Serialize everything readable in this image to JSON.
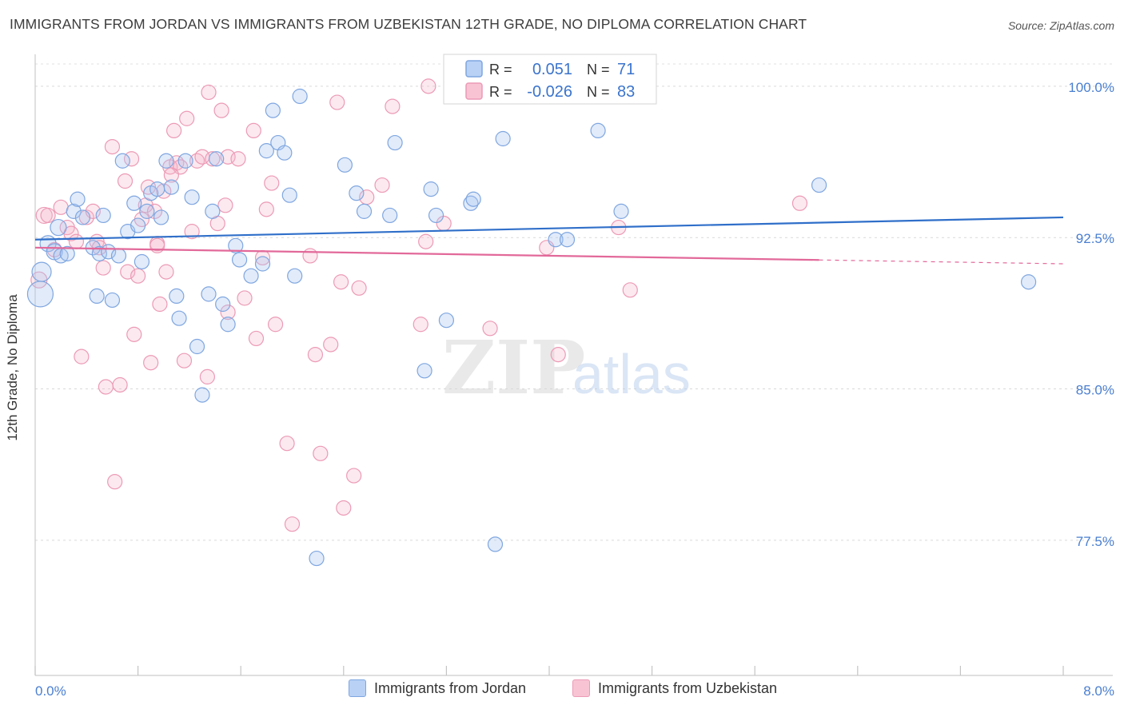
{
  "title": "IMMIGRANTS FROM JORDAN VS IMMIGRANTS FROM UZBEKISTAN 12TH GRADE, NO DIPLOMA CORRELATION CHART",
  "source": "Source: ZipAtlas.com",
  "watermark": {
    "zip": "ZIP",
    "atlas": "atlas"
  },
  "legend_box": {
    "rows": [
      {
        "r_label": "R =",
        "r_value": "0.051",
        "n_label": "N =",
        "n_value": "71",
        "color": "#7fa6e0"
      },
      {
        "r_label": "R =",
        "r_value": "-0.026",
        "n_label": "N =",
        "n_value": "83",
        "color": "#ec9ab5"
      }
    ]
  },
  "bottom_legend": [
    {
      "label": "Immigrants from Jordan",
      "color": "#7fa6e0"
    },
    {
      "label": "Immigrants from Uzbekistan",
      "color": "#ec9ab5"
    }
  ],
  "chart_data": {
    "type": "scatter",
    "xlabel": "",
    "ylabel": "12th Grade, No Diploma",
    "xlim": [
      0,
      8
    ],
    "ylim": [
      70.8,
      101.5
    ],
    "x_tick_labels": [
      "0.0%",
      "8.0%"
    ],
    "y_ticks": [
      77.5,
      85.0,
      92.5,
      100.0
    ],
    "y_tick_labels": [
      "77.5%",
      "85.0%",
      "92.5%",
      "100.0%"
    ],
    "grid": true,
    "legend_placement": "top-center",
    "series": [
      {
        "name": "Immigrants from Jordan",
        "color": "#7fa6e0",
        "trend": {
          "x0": 0.0,
          "y0": 92.4,
          "x1": 8.0,
          "y1": 93.5,
          "dashed_from": null
        },
        "points": [
          [
            0.04,
            89.7,
            16
          ],
          [
            0.05,
            90.8,
            12
          ],
          [
            0.1,
            92.2,
            10
          ],
          [
            0.15,
            91.8,
            10
          ],
          [
            0.18,
            93.0,
            10
          ],
          [
            0.2,
            91.6,
            9
          ],
          [
            0.25,
            91.7,
            9
          ],
          [
            0.3,
            93.8,
            9
          ],
          [
            0.33,
            94.4,
            9
          ],
          [
            0.37,
            93.5,
            9
          ],
          [
            0.45,
            92.0,
            9
          ],
          [
            0.48,
            89.6,
            9
          ],
          [
            0.5,
            91.7,
            9
          ],
          [
            0.53,
            93.6,
            9
          ],
          [
            0.57,
            91.8,
            9
          ],
          [
            0.6,
            89.4,
            9
          ],
          [
            0.65,
            91.6,
            9
          ],
          [
            0.68,
            96.3,
            9
          ],
          [
            0.72,
            92.8,
            9
          ],
          [
            0.77,
            94.2,
            9
          ],
          [
            0.8,
            93.1,
            9
          ],
          [
            0.83,
            91.3,
            9
          ],
          [
            0.87,
            93.8,
            9
          ],
          [
            0.9,
            94.7,
            9
          ],
          [
            0.95,
            94.9,
            9
          ],
          [
            0.98,
            93.5,
            9
          ],
          [
            1.02,
            96.3,
            9
          ],
          [
            1.06,
            95.0,
            9
          ],
          [
            1.1,
            89.6,
            9
          ],
          [
            1.12,
            88.5,
            9
          ],
          [
            1.17,
            96.3,
            9
          ],
          [
            1.22,
            94.5,
            9
          ],
          [
            1.26,
            87.1,
            9
          ],
          [
            1.3,
            84.7,
            9
          ],
          [
            1.35,
            89.7,
            9
          ],
          [
            1.38,
            93.8,
            9
          ],
          [
            1.41,
            96.4,
            9
          ],
          [
            1.46,
            89.2,
            9
          ],
          [
            1.5,
            88.2,
            9
          ],
          [
            1.56,
            92.1,
            9
          ],
          [
            1.59,
            91.4,
            9
          ],
          [
            1.68,
            90.6,
            9
          ],
          [
            1.77,
            91.2,
            9
          ],
          [
            1.8,
            96.8,
            9
          ],
          [
            1.85,
            98.8,
            9
          ],
          [
            1.89,
            97.2,
            9
          ],
          [
            1.94,
            96.7,
            9
          ],
          [
            1.98,
            94.6,
            9
          ],
          [
            2.02,
            90.6,
            9
          ],
          [
            2.06,
            99.5,
            9
          ],
          [
            2.19,
            76.6,
            9
          ],
          [
            2.41,
            96.1,
            9
          ],
          [
            2.5,
            94.7,
            9
          ],
          [
            2.56,
            93.8,
            9
          ],
          [
            2.76,
            93.6,
            9
          ],
          [
            2.8,
            97.2,
            9
          ],
          [
            3.03,
            85.9,
            9
          ],
          [
            3.08,
            94.9,
            9
          ],
          [
            3.12,
            93.6,
            9
          ],
          [
            3.2,
            88.4,
            9
          ],
          [
            3.39,
            94.2,
            9
          ],
          [
            3.41,
            94.4,
            9
          ],
          [
            3.64,
            97.4,
            9
          ],
          [
            3.52,
            100.0,
            9
          ],
          [
            4.05,
            92.4,
            9
          ],
          [
            4.14,
            92.4,
            9
          ],
          [
            4.38,
            97.8,
            9
          ],
          [
            4.56,
            93.8,
            9
          ],
          [
            6.1,
            95.1,
            9
          ],
          [
            7.73,
            90.3,
            9
          ],
          [
            3.58,
            77.3,
            9
          ]
        ]
      },
      {
        "name": "Immigrants from Uzbekistan",
        "color": "#ec9ab5",
        "trend": {
          "x0": 0.0,
          "y0": 92.0,
          "x1": 8.0,
          "y1": 91.2,
          "dashed_from": 6.1
        },
        "points": [
          [
            0.03,
            90.4,
            10
          ],
          [
            0.07,
            93.6,
            10
          ],
          [
            0.1,
            93.6,
            9
          ],
          [
            0.15,
            91.9,
            9
          ],
          [
            0.2,
            94.0,
            9
          ],
          [
            0.25,
            93.0,
            9
          ],
          [
            0.28,
            92.7,
            9
          ],
          [
            0.32,
            92.3,
            9
          ],
          [
            0.36,
            86.6,
            9
          ],
          [
            0.4,
            93.5,
            9
          ],
          [
            0.45,
            93.8,
            9
          ],
          [
            0.48,
            92.3,
            9
          ],
          [
            0.5,
            92.0,
            9
          ],
          [
            0.53,
            91.0,
            9
          ],
          [
            0.55,
            85.1,
            9
          ],
          [
            0.6,
            97.0,
            9
          ],
          [
            0.62,
            80.4,
            9
          ],
          [
            0.66,
            85.2,
            9
          ],
          [
            0.7,
            95.3,
            9
          ],
          [
            0.72,
            90.8,
            9
          ],
          [
            0.75,
            96.4,
            9
          ],
          [
            0.77,
            87.7,
            9
          ],
          [
            0.8,
            90.6,
            9
          ],
          [
            0.83,
            93.4,
            9
          ],
          [
            0.86,
            94.1,
            9
          ],
          [
            0.88,
            95.0,
            9
          ],
          [
            0.9,
            86.3,
            9
          ],
          [
            0.93,
            93.8,
            9
          ],
          [
            0.95,
            92.2,
            9
          ],
          [
            0.97,
            89.2,
            9
          ],
          [
            1.0,
            94.8,
            9
          ],
          [
            1.02,
            90.8,
            9
          ],
          [
            1.05,
            96.0,
            9
          ],
          [
            1.08,
            97.8,
            9
          ],
          [
            1.1,
            96.2,
            9
          ],
          [
            1.13,
            96.0,
            9
          ],
          [
            1.16,
            86.4,
            9
          ],
          [
            1.18,
            98.4,
            9
          ],
          [
            1.22,
            92.8,
            9
          ],
          [
            1.26,
            96.3,
            9
          ],
          [
            1.3,
            96.5,
            9
          ],
          [
            1.34,
            85.6,
            9
          ],
          [
            1.35,
            99.7,
            9
          ],
          [
            1.38,
            96.4,
            9
          ],
          [
            1.42,
            93.2,
            9
          ],
          [
            1.45,
            98.8,
            9
          ],
          [
            1.48,
            94.1,
            9
          ],
          [
            1.5,
            96.5,
            9
          ],
          [
            1.58,
            96.4,
            9
          ],
          [
            1.63,
            89.5,
            9
          ],
          [
            1.7,
            97.8,
            9
          ],
          [
            1.72,
            87.5,
            9
          ],
          [
            1.77,
            91.5,
            9
          ],
          [
            1.8,
            93.9,
            9
          ],
          [
            1.84,
            95.2,
            9
          ],
          [
            1.87,
            88.2,
            9
          ],
          [
            1.96,
            82.3,
            9
          ],
          [
            2.0,
            78.3,
            9
          ],
          [
            2.14,
            91.6,
            9
          ],
          [
            2.18,
            86.7,
            9
          ],
          [
            2.22,
            81.8,
            9
          ],
          [
            2.3,
            87.2,
            9
          ],
          [
            2.35,
            99.2,
            9
          ],
          [
            2.38,
            90.3,
            9
          ],
          [
            2.4,
            79.1,
            9
          ],
          [
            2.48,
            80.7,
            9
          ],
          [
            2.52,
            90.0,
            9
          ],
          [
            2.58,
            94.5,
            9
          ],
          [
            2.7,
            95.1,
            9
          ],
          [
            2.78,
            99.0,
            9
          ],
          [
            3.0,
            88.2,
            9
          ],
          [
            3.04,
            92.3,
            9
          ],
          [
            3.06,
            100.0,
            9
          ],
          [
            3.18,
            93.2,
            9
          ],
          [
            3.54,
            88.0,
            9
          ],
          [
            3.98,
            92.0,
            9
          ],
          [
            4.07,
            86.7,
            9
          ],
          [
            4.54,
            93.0,
            9
          ],
          [
            4.63,
            89.9,
            9
          ],
          [
            5.95,
            94.2,
            9
          ],
          [
            1.06,
            95.6,
            9
          ],
          [
            0.95,
            92.1,
            9
          ],
          [
            1.5,
            88.8,
            9
          ]
        ]
      }
    ]
  }
}
